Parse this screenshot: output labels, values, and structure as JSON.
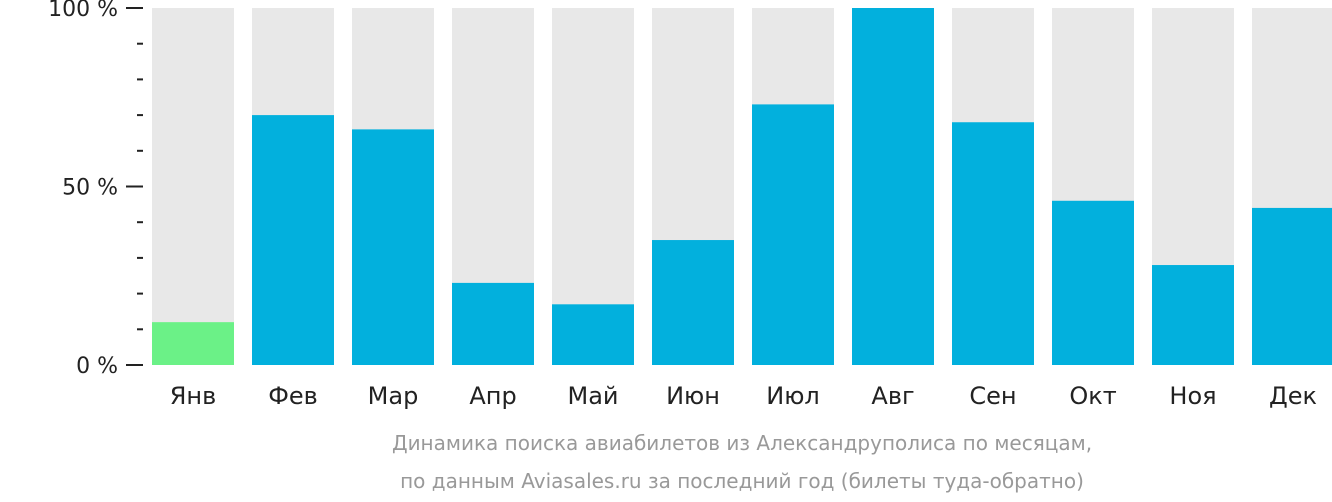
{
  "chart_data": {
    "type": "bar",
    "categories": [
      "Янв",
      "Фев",
      "Мар",
      "Апр",
      "Май",
      "Июн",
      "Июл",
      "Авг",
      "Сен",
      "Окт",
      "Ноя",
      "Дек"
    ],
    "values": [
      12,
      70,
      66,
      23,
      17,
      35,
      73,
      100,
      68,
      46,
      28,
      44
    ],
    "ylim": [
      0,
      100
    ],
    "yticks": [
      {
        "value": 100,
        "label": "100 %"
      },
      {
        "value": 50,
        "label": "50 %"
      },
      {
        "value": 0,
        "label": "0 %"
      }
    ],
    "minor_ticks": [
      10,
      20,
      30,
      40,
      60,
      70,
      80,
      90
    ],
    "highlight_index": 0,
    "colors": {
      "bar": "#02b0dd",
      "highlight": "#6bf187",
      "background_bar": "#e8e8e8"
    },
    "caption": [
      "Динамика поиска авиабилетов из Александруполиса по месяцам,",
      "по данным Aviasales.ru за последний год (билеты туда-обратно)"
    ]
  }
}
